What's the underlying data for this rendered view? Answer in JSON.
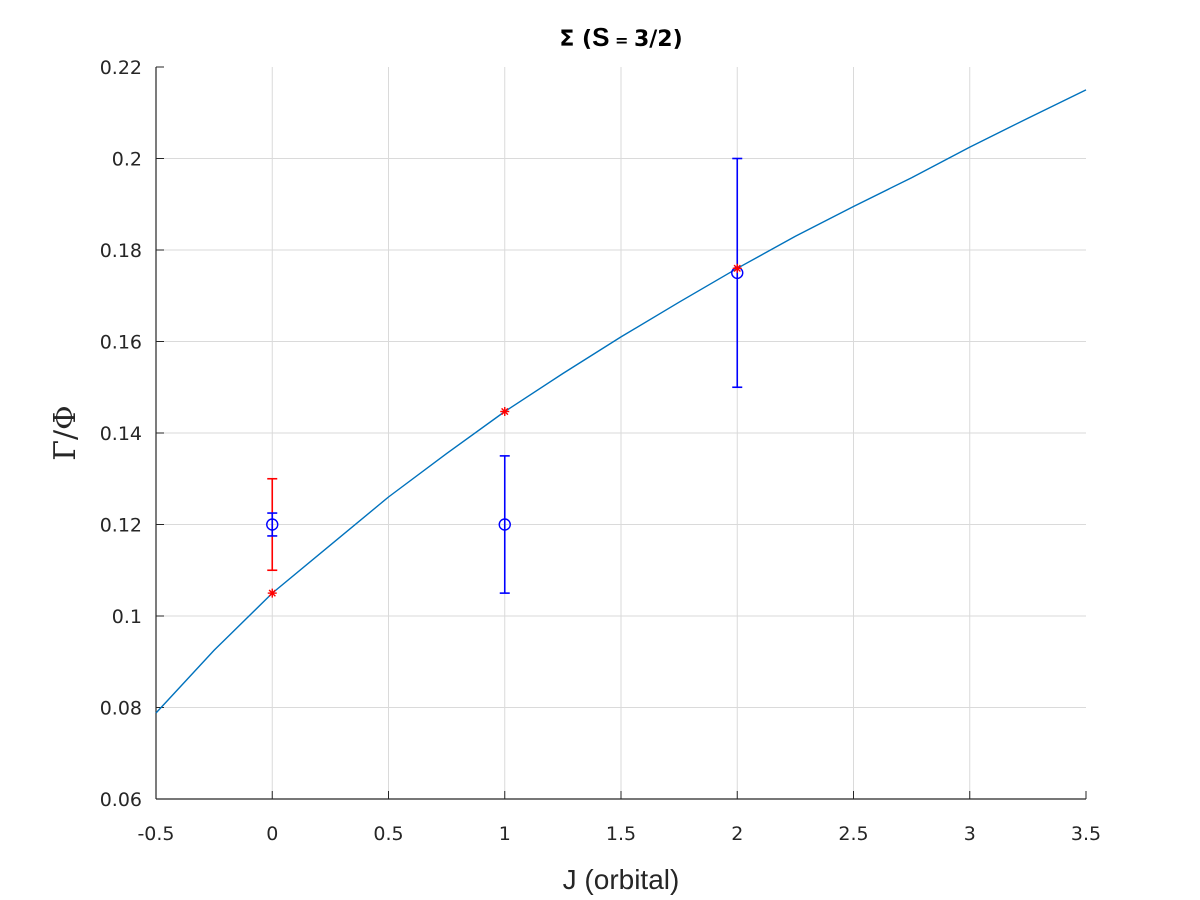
{
  "chart_data": {
    "type": "scatter",
    "title": {
      "symbol": "Σ",
      "open": " (",
      "s": "S",
      "eq": " = ",
      "frac": "3/2",
      "close": ")"
    },
    "xlabel": "J (orbital)",
    "ylabel": "Γ/Φ",
    "xlim": [
      -0.5,
      3.5
    ],
    "ylim": [
      0.06,
      0.22
    ],
    "xticks": [
      -0.5,
      0,
      0.5,
      1,
      1.5,
      2,
      2.5,
      3,
      3.5
    ],
    "xtick_labels": [
      "-0.5",
      "0",
      "0.5",
      "1",
      "1.5",
      "2",
      "2.5",
      "3",
      "3.5"
    ],
    "yticks": [
      0.06,
      0.08,
      0.1,
      0.12,
      0.14,
      0.16,
      0.18,
      0.2,
      0.22
    ],
    "ytick_labels": [
      "0.06",
      "0.08",
      "0.1",
      "0.12",
      "0.14",
      "0.16",
      "0.18",
      "0.2",
      "0.22"
    ],
    "grid": true,
    "colors": {
      "curve": "#0072BD",
      "measured": "#0000FF",
      "model": "#FF0000",
      "grid": "#DADADA",
      "axis": "#262626"
    },
    "series": [
      {
        "type": "line",
        "x": [
          -0.5,
          -0.25,
          0,
          0.25,
          0.5,
          0.75,
          1,
          1.25,
          1.5,
          1.75,
          2,
          2.25,
          2.5,
          2.75,
          3,
          3.25,
          3.5
        ],
        "y": [
          0.0788,
          0.0925,
          0.105,
          0.1155,
          0.126,
          0.1355,
          0.1447,
          0.153,
          0.161,
          0.1686,
          0.176,
          0.183,
          0.1895,
          0.1958,
          0.2025,
          0.2088,
          0.215
        ]
      },
      {
        "type": "errorbar",
        "marker": "circle",
        "x": [
          0,
          1,
          2
        ],
        "y": [
          0.12,
          0.12,
          0.175
        ],
        "yerr_low": [
          0.0025,
          0.015,
          0.025
        ],
        "yerr_high": [
          0.0025,
          0.015,
          0.025
        ]
      },
      {
        "type": "errorbar",
        "marker": "none",
        "x": [
          0
        ],
        "y": [
          0.12
        ],
        "yerr_low": [
          0.01
        ],
        "yerr_high": [
          0.01
        ]
      },
      {
        "type": "scatter",
        "marker": "asterisk",
        "x": [
          0,
          1,
          2
        ],
        "y": [
          0.105,
          0.1447,
          0.176
        ]
      }
    ]
  }
}
